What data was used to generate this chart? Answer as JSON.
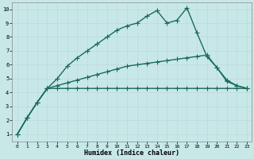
{
  "xlabel": "Humidex (Indice chaleur)",
  "ylabel": "",
  "background_color": "#c8e8e8",
  "grid_color": "#c0d8d8",
  "line_color": "#1a6b5a",
  "xlim": [
    -0.5,
    23.5
  ],
  "ylim": [
    0.5,
    10.5
  ],
  "xticks": [
    0,
    1,
    2,
    3,
    4,
    5,
    6,
    7,
    8,
    9,
    10,
    11,
    12,
    13,
    14,
    15,
    16,
    17,
    18,
    19,
    20,
    21,
    22,
    23
  ],
  "yticks": [
    1,
    2,
    3,
    4,
    5,
    6,
    7,
    8,
    9,
    10
  ],
  "line1_x": [
    0,
    1,
    2,
    3,
    4,
    5,
    6,
    7,
    8,
    9,
    10,
    11,
    12,
    13,
    14,
    15,
    16,
    17,
    18,
    19,
    20,
    21,
    22,
    23
  ],
  "line1_y": [
    1.0,
    2.2,
    3.3,
    4.3,
    4.3,
    4.3,
    4.3,
    4.3,
    4.3,
    4.3,
    4.3,
    4.3,
    4.3,
    4.3,
    4.3,
    4.3,
    4.3,
    4.3,
    4.3,
    4.3,
    4.3,
    4.3,
    4.3,
    4.3
  ],
  "line2_x": [
    0,
    1,
    2,
    3,
    4,
    5,
    6,
    7,
    8,
    9,
    10,
    11,
    12,
    13,
    14,
    15,
    16,
    17,
    18,
    19,
    20,
    21,
    22,
    23
  ],
  "line2_y": [
    1.0,
    2.2,
    3.3,
    4.3,
    4.5,
    4.7,
    4.9,
    5.1,
    5.3,
    5.5,
    5.7,
    5.9,
    6.0,
    6.1,
    6.2,
    6.3,
    6.4,
    6.5,
    6.6,
    6.7,
    5.8,
    4.9,
    4.5,
    4.3
  ],
  "line3_x": [
    0,
    1,
    2,
    3,
    4,
    5,
    6,
    7,
    8,
    9,
    10,
    11,
    12,
    13,
    14,
    15,
    16,
    17,
    18,
    19,
    20,
    21,
    22,
    23
  ],
  "line3_y": [
    1.0,
    2.2,
    3.3,
    4.3,
    5.0,
    5.9,
    6.5,
    7.0,
    7.5,
    8.0,
    8.5,
    8.8,
    9.0,
    9.5,
    9.9,
    9.0,
    9.2,
    10.1,
    8.3,
    6.6,
    5.8,
    4.8,
    4.5,
    4.3
  ],
  "marker": "+",
  "markersize": 4,
  "linewidth": 1.0,
  "figsize": [
    3.2,
    2.0
  ],
  "dpi": 100
}
